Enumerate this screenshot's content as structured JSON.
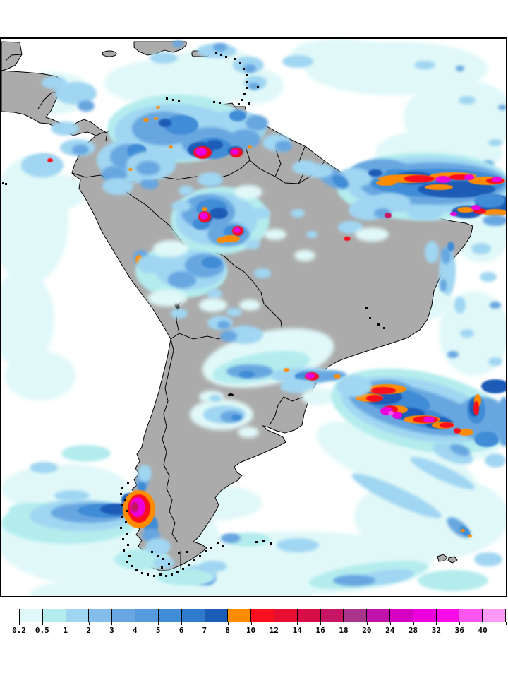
{
  "map": {
    "region": "South America precipitation field",
    "land_color": "#ABABAB",
    "ocean_color": "#FFFFFF",
    "coast_border_color": "#000000",
    "frame_color": "#000000"
  },
  "colorbar": {
    "labels": [
      "0.2",
      "0.5",
      "1",
      "2",
      "3",
      "4",
      "5",
      "6",
      "7",
      "8",
      "10",
      "12",
      "14",
      "16",
      "18",
      "20",
      "24",
      "28",
      "32",
      "36",
      "40"
    ],
    "colors": [
      "#E0F8F8",
      "#B4ECEE",
      "#A0D6F2",
      "#84BCEA",
      "#68A6E0",
      "#549ADC",
      "#408CD6",
      "#2E7ACC",
      "#1C5CB6",
      "#FF8C00",
      "#FA0F1E",
      "#E60F31",
      "#D60D47",
      "#C51563",
      "#A8348C",
      "#BF13AC",
      "#D600C2",
      "#EC00DC",
      "#FA0CE8",
      "#FD55EF",
      "#FE9AF6"
    ]
  },
  "chart_data": {
    "type": "heatmap",
    "title": "",
    "legend_entries": [
      "0.2",
      "0.5",
      "1",
      "2",
      "3",
      "4",
      "5",
      "6",
      "7",
      "8",
      "10",
      "12",
      "14",
      "16",
      "18",
      "20",
      "24",
      "28",
      "32",
      "36",
      "40"
    ],
    "legend_position": "bottom"
  }
}
